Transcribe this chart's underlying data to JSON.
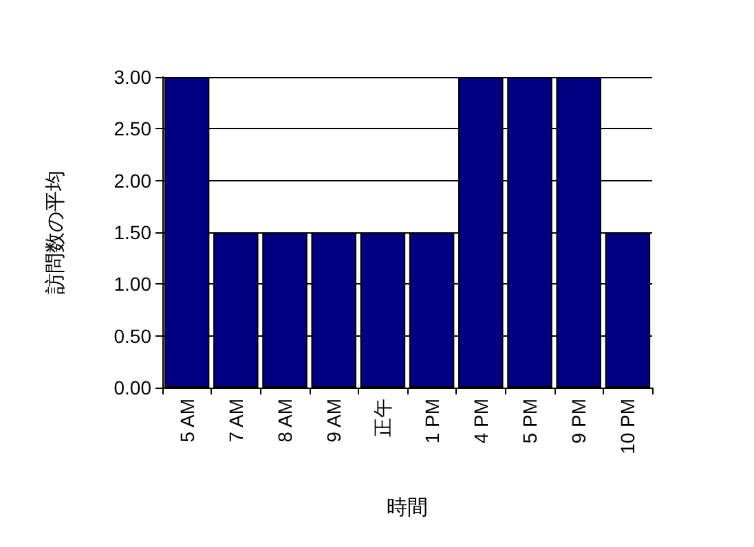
{
  "chart_data": {
    "type": "bar",
    "xlabel": "時間",
    "ylabel": "訪問数の平均",
    "categories": [
      "5 AM",
      "7 AM",
      "8 AM",
      "9 AM",
      "正午",
      "1 PM",
      "4 PM",
      "5 PM",
      "9 PM",
      "10 PM"
    ],
    "values": [
      3,
      1.5,
      1.5,
      1.5,
      1.5,
      1.5,
      3,
      3,
      3,
      1.5
    ],
    "color": "#000080",
    "ylim": [
      0,
      3
    ],
    "yticks": [
      {
        "value": 0,
        "label": "0.00"
      },
      {
        "value": 0.5,
        "label": "0.50"
      },
      {
        "value": 1,
        "label": "1.00"
      },
      {
        "value": 1.5,
        "label": "1.50"
      },
      {
        "value": 2,
        "label": "2.00"
      },
      {
        "value": 2.5,
        "label": "2.50"
      },
      {
        "value": 3,
        "label": "3.00"
      }
    ],
    "grid": "y"
  }
}
